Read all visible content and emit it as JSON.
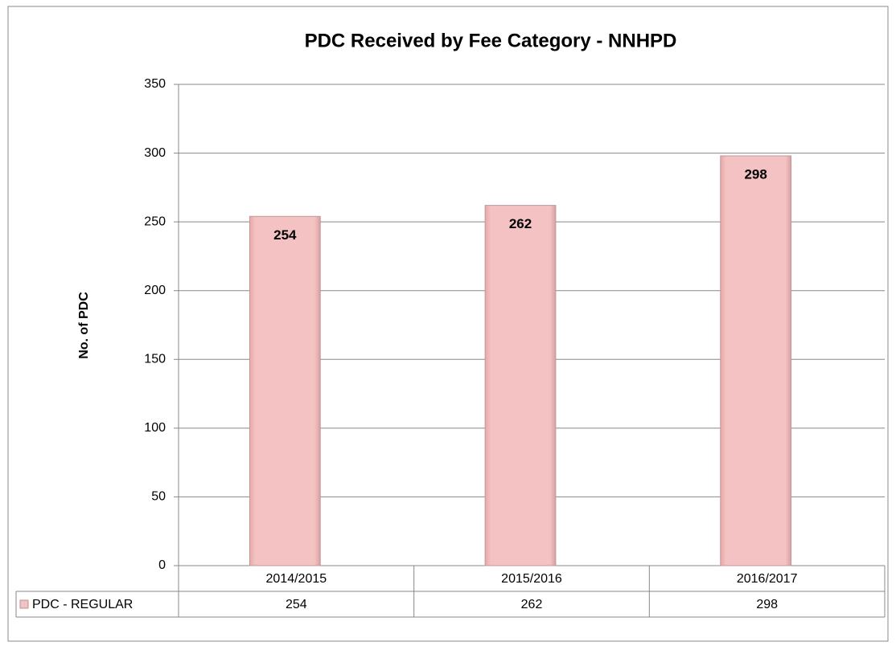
{
  "chart_data": {
    "type": "bar",
    "title": "PDC Received by Fee Category - NNHPD",
    "y_label": "No. of PDC",
    "categories": [
      "2014/2015",
      "2015/2016",
      "2016/2017"
    ],
    "series": [
      {
        "name": "PDC - REGULAR",
        "color": "#f4c2c2",
        "values": [
          254,
          262,
          298
        ]
      }
    ],
    "ylim": [
      0,
      350
    ],
    "yticks": [
      0,
      50,
      100,
      150,
      200,
      250,
      300,
      350
    ],
    "grid": true
  }
}
